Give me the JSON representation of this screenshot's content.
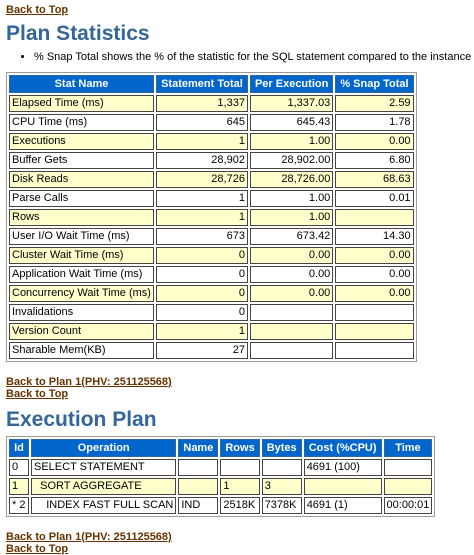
{
  "links": {
    "back_to_top": "Back to Top",
    "back_to_plan": "Back to Plan 1(PHV: 251125568)"
  },
  "plan_statistics": {
    "title": "Plan Statistics",
    "note": "% Snap Total shows the % of the statistic for the SQL statement compared to the instance total",
    "columns": [
      "Stat Name",
      "Statement Total",
      "Per Execution",
      "% Snap Total"
    ],
    "rows": [
      [
        "Elapsed Time (ms)",
        "1,337",
        "1,337.03",
        "2.59"
      ],
      [
        "CPU Time (ms)",
        "645",
        "645.43",
        "1.78"
      ],
      [
        "Executions",
        "1",
        "1.00",
        "0.00"
      ],
      [
        "Buffer Gets",
        "28,902",
        "28,902.00",
        "6.80"
      ],
      [
        "Disk Reads",
        "28,726",
        "28,726.00",
        "68.63"
      ],
      [
        "Parse Calls",
        "1",
        "1.00",
        "0.01"
      ],
      [
        "Rows",
        "1",
        "1.00",
        ""
      ],
      [
        "User I/O Wait Time (ms)",
        "673",
        "673.42",
        "14.30"
      ],
      [
        "Cluster Wait Time (ms)",
        "0",
        "0.00",
        "0.00"
      ],
      [
        "Application Wait Time (ms)",
        "0",
        "0.00",
        "0.00"
      ],
      [
        "Concurrency Wait Time (ms)",
        "0",
        "0.00",
        "0.00"
      ],
      [
        "Invalidations",
        "0",
        "",
        ""
      ],
      [
        "Version Count",
        "1",
        "",
        ""
      ],
      [
        "Sharable Mem(KB)",
        "27",
        "",
        ""
      ]
    ]
  },
  "execution_plan": {
    "title": "Execution Plan",
    "columns": [
      "Id",
      "Operation",
      "Name",
      "Rows",
      "Bytes",
      "Cost (%CPU)",
      "Time"
    ],
    "rows": [
      [
        "0",
        "SELECT STATEMENT",
        "",
        "",
        "",
        "4691 (100)",
        ""
      ],
      [
        "1",
        "  SORT AGGREGATE",
        "",
        "1",
        "3",
        "",
        ""
      ],
      [
        "* 2",
        "    INDEX FAST FULL SCAN",
        "IND",
        "2518K",
        "7378K",
        "4691 (1)",
        "00:00:01"
      ]
    ]
  }
}
